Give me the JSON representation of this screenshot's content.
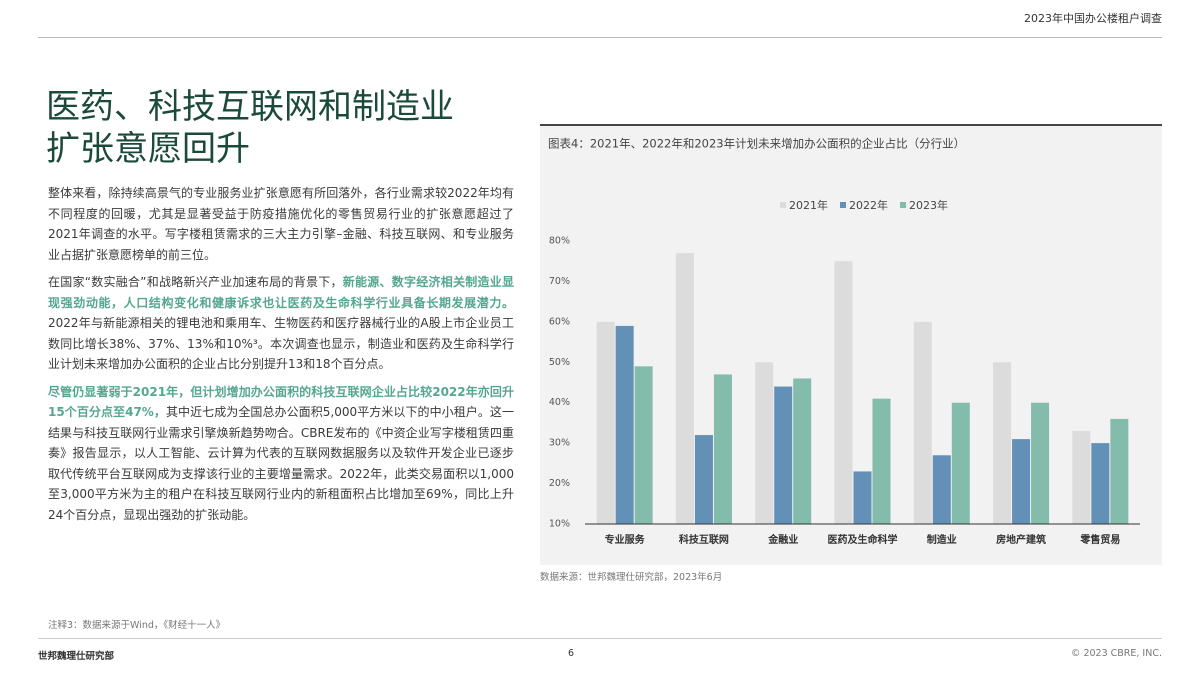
{
  "header": {
    "report": "2023年中国办公楼租户调查"
  },
  "title": {
    "lines": [
      "医药、科技互联网和制造业",
      "扩张意愿回升"
    ]
  },
  "body": {
    "paragraphs": [
      {
        "segments": [
          {
            "text": "整体来看，除持续高景气的专业服务业扩张意愿有所回落外，各行业需求较2022年均有不同程度的回暖，尤其是显著受益于防疫措施优化的零售贸易行业的扩张意愿超过了2021年调查的水平。写字楼租赁需求的三大主力引擎–金融、科技互联网、和专业服务业占据扩张意愿榜单的前三位。",
            "highlight": false
          }
        ]
      },
      {
        "segments": [
          {
            "text": "在国家“数实融合”和战略新兴产业加速布局的背景下，",
            "highlight": false
          },
          {
            "text": "新能源、数字经济相关制造业显现强劲动能，人口结构变化和健康诉求也让医药及生命科学行业具备长期发展潜力。",
            "highlight": true
          },
          {
            "text": "2022年与新能源相关的锂电池和乘用车、生物医药和医疗器械行业的A股上市企业员工数同比增长38%、37%、13%和10%³。本次调查也显示，制造业和医药及生命科学行业计划未来增加办公面积的企业占比分别提升13和18个百分点。",
            "highlight": false
          }
        ]
      },
      {
        "segments": [
          {
            "text": "尽管仍显著弱于2021年，但计划增加办公面积的科技互联网企业占比较2022年亦回升15个百分点至47%，",
            "highlight": true
          },
          {
            "text": "其中近七成为全国总办公面积5,000平方米以下的中小租户。这一结果与科技互联网行业需求引擎焕新趋势吻合。CBRE发布的《中资企业写字楼租赁四重奏》报告显示，以人工智能、云计算为代表的互联网数据服务以及软件开发企业已逐步取代传统平台互联网成为支撑该行业的主要增量需求。2022年，此类交易面积以1,000至3,000平方米为主的租户在科技互联网行业内的新租面积占比增加至69%，同比上升24个百分点，显现出强劲的扩张动能。",
            "highlight": false
          }
        ]
      }
    ]
  },
  "chart_data": {
    "type": "bar",
    "title": "图表4：2021年、2022年和2023年计划未来增加办公面积的企业占比（分行业）",
    "categories": [
      "专业服务",
      "科技互联网",
      "金融业",
      "医药及生命科学",
      "制造业",
      "房地产建筑",
      "零售贸易"
    ],
    "series": [
      {
        "name": "2021年",
        "color": "#dcdcdc",
        "values": [
          60,
          77,
          50,
          75,
          60,
          50,
          33
        ]
      },
      {
        "name": "2022年",
        "color": "#6390b6",
        "values": [
          59,
          32,
          44,
          23,
          27,
          31,
          30
        ]
      },
      {
        "name": "2023年",
        "color": "#83bcaa",
        "values": [
          49,
          47,
          46,
          41,
          40,
          40,
          36
        ]
      }
    ],
    "ylim": [
      10,
      80
    ],
    "yticks": [
      {
        "value": 10,
        "label": "10%"
      },
      {
        "value": 20,
        "label": "20%"
      },
      {
        "value": 30,
        "label": "30%"
      },
      {
        "value": 40,
        "label": "40%"
      },
      {
        "value": 50,
        "label": "50%"
      },
      {
        "value": 60,
        "label": "60%"
      },
      {
        "value": 70,
        "label": "70%"
      },
      {
        "value": 80,
        "label": "80%"
      }
    ],
    "grid": false,
    "legend": "top",
    "source": "数据来源：世邦魏理仕研究部，2023年6月"
  },
  "footnote": "注释3：数据来源于Wind，《财经十一人》",
  "footer": {
    "left": "世邦魏理仕研究部",
    "page": "6",
    "right": "© 2023 CBRE, INC."
  }
}
